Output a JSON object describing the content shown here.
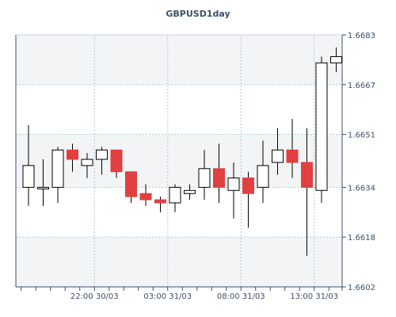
{
  "chart_data": {
    "type": "candlestick",
    "title": "GBPUSD1day",
    "xlabel": "",
    "ylabel": "",
    "ylim": [
      1.6602,
      1.6683
    ],
    "y_ticks": [
      "1.6683",
      "1.6667",
      "1.6651",
      "1.6634",
      "1.6618",
      "1.6602"
    ],
    "x_ticks": [
      {
        "label": "22:00 30/03",
        "index": 4.5
      },
      {
        "label": "03:00 31/03",
        "index": 9.5
      },
      {
        "label": "08:00 31/03",
        "index": 14.5
      },
      {
        "label": "13:00 31/03",
        "index": 19.5
      }
    ],
    "grid": true,
    "colors": {
      "up": "#ffffff",
      "down": "#e04040",
      "wick": "#000000",
      "grid": "#a9cfd6",
      "axis": "#3d4f66"
    },
    "candles": [
      {
        "open": 1.6634,
        "high": 1.6654,
        "low": 1.6628,
        "close": 1.6641
      },
      {
        "open": 1.6634,
        "high": 1.6643,
        "low": 1.6628,
        "close": 1.6634
      },
      {
        "open": 1.6634,
        "high": 1.6647,
        "low": 1.6629,
        "close": 1.6646
      },
      {
        "open": 1.6646,
        "high": 1.6648,
        "low": 1.6639,
        "close": 1.6643
      },
      {
        "open": 1.6641,
        "high": 1.6645,
        "low": 1.6637,
        "close": 1.6643
      },
      {
        "open": 1.6643,
        "high": 1.6647,
        "low": 1.6638,
        "close": 1.6646
      },
      {
        "open": 1.6646,
        "high": 1.6646,
        "low": 1.6637,
        "close": 1.6639
      },
      {
        "open": 1.6639,
        "high": 1.6639,
        "low": 1.6629,
        "close": 1.6631
      },
      {
        "open": 1.6632,
        "high": 1.6635,
        "low": 1.6628,
        "close": 1.663
      },
      {
        "open": 1.663,
        "high": 1.6631,
        "low": 1.6626,
        "close": 1.6629
      },
      {
        "open": 1.6629,
        "high": 1.6635,
        "low": 1.6626,
        "close": 1.6634
      },
      {
        "open": 1.6632,
        "high": 1.6635,
        "low": 1.663,
        "close": 1.6633
      },
      {
        "open": 1.6634,
        "high": 1.6646,
        "low": 1.663,
        "close": 1.664
      },
      {
        "open": 1.664,
        "high": 1.6648,
        "low": 1.6629,
        "close": 1.6634
      },
      {
        "open": 1.6633,
        "high": 1.6642,
        "low": 1.6624,
        "close": 1.6637
      },
      {
        "open": 1.6637,
        "high": 1.6639,
        "low": 1.6621,
        "close": 1.6632
      },
      {
        "open": 1.6634,
        "high": 1.6649,
        "low": 1.6629,
        "close": 1.6641
      },
      {
        "open": 1.6642,
        "high": 1.6653,
        "low": 1.6638,
        "close": 1.6646
      },
      {
        "open": 1.6646,
        "high": 1.6656,
        "low": 1.6637,
        "close": 1.6642
      },
      {
        "open": 1.6642,
        "high": 1.6653,
        "low": 1.6612,
        "close": 1.6634
      },
      {
        "open": 1.6633,
        "high": 1.6676,
        "low": 1.6629,
        "close": 1.6674
      },
      {
        "open": 1.6674,
        "high": 1.6679,
        "low": 1.6671,
        "close": 1.6676
      }
    ]
  }
}
